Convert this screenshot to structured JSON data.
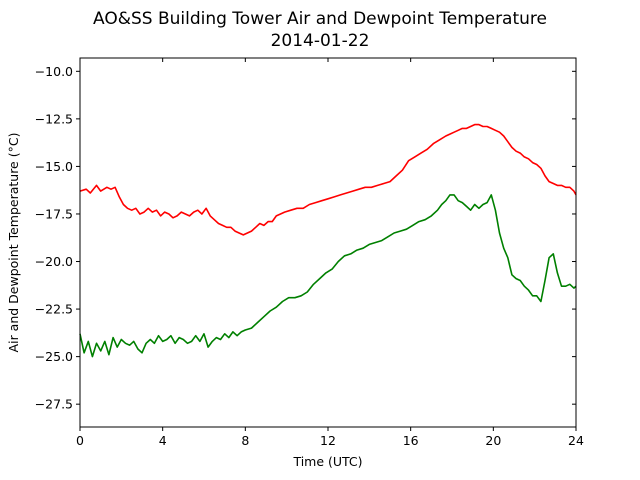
{
  "chart_data": {
    "type": "line",
    "title": "AO&SS Building Tower Air and Dewpoint Temperature",
    "subtitle": "2014-01-22",
    "xlabel": "Time (UTC)",
    "ylabel": "Air and Dewpoint Temperature (°C)",
    "xlim": [
      0,
      24
    ],
    "ylim": [
      -28.7,
      -9.3
    ],
    "xticks": [
      0,
      4,
      8,
      12,
      16,
      20,
      24
    ],
    "xtick_labels": [
      "0",
      "4",
      "8",
      "12",
      "16",
      "20",
      "24"
    ],
    "yticks": [
      -10.0,
      -12.5,
      -15.0,
      -17.5,
      -20.0,
      -22.5,
      -25.0,
      -27.5
    ],
    "ytick_labels": [
      "−10.0",
      "−12.5",
      "−15.0",
      "−17.5",
      "−20.0",
      "−22.5",
      "−25.0",
      "−27.5"
    ],
    "grid": false,
    "legend": "none",
    "series": [
      {
        "color": "#ff0000",
        "x": [
          0,
          0.3,
          0.5,
          0.8,
          1.0,
          1.3,
          1.5,
          1.7,
          1.9,
          2.1,
          2.3,
          2.5,
          2.7,
          2.9,
          3.1,
          3.3,
          3.5,
          3.7,
          3.9,
          4.1,
          4.3,
          4.5,
          4.7,
          4.9,
          5.1,
          5.3,
          5.5,
          5.7,
          5.9,
          6.1,
          6.3,
          6.5,
          6.7,
          6.9,
          7.1,
          7.3,
          7.5,
          7.7,
          7.9,
          8.1,
          8.3,
          8.5,
          8.7,
          8.9,
          9.1,
          9.3,
          9.5,
          9.7,
          9.9,
          10.2,
          10.5,
          10.8,
          11.1,
          11.4,
          11.7,
          12.0,
          12.3,
          12.6,
          12.9,
          13.2,
          13.5,
          13.8,
          14.1,
          14.4,
          14.7,
          15.0,
          15.3,
          15.6,
          15.9,
          16.2,
          16.5,
          16.8,
          17.1,
          17.4,
          17.7,
          17.9,
          18.1,
          18.3,
          18.5,
          18.7,
          18.9,
          19.1,
          19.3,
          19.5,
          19.7,
          19.9,
          20.1,
          20.3,
          20.5,
          20.7,
          20.9,
          21.1,
          21.3,
          21.5,
          21.7,
          21.9,
          22.1,
          22.3,
          22.5,
          22.7,
          22.9,
          23.1,
          23.3,
          23.5,
          23.7,
          23.9,
          24.0
        ],
        "y": [
          -16.3,
          -16.2,
          -16.4,
          -16.0,
          -16.3,
          -16.1,
          -16.2,
          -16.1,
          -16.6,
          -17.0,
          -17.2,
          -17.3,
          -17.2,
          -17.5,
          -17.4,
          -17.2,
          -17.4,
          -17.3,
          -17.6,
          -17.4,
          -17.5,
          -17.7,
          -17.6,
          -17.4,
          -17.5,
          -17.6,
          -17.4,
          -17.3,
          -17.5,
          -17.2,
          -17.6,
          -17.8,
          -18.0,
          -18.1,
          -18.2,
          -18.2,
          -18.4,
          -18.5,
          -18.6,
          -18.5,
          -18.4,
          -18.2,
          -18.0,
          -18.1,
          -17.9,
          -17.9,
          -17.6,
          -17.5,
          -17.4,
          -17.3,
          -17.2,
          -17.2,
          -17.0,
          -16.9,
          -16.8,
          -16.7,
          -16.6,
          -16.5,
          -16.4,
          -16.3,
          -16.2,
          -16.1,
          -16.1,
          -16.0,
          -15.9,
          -15.8,
          -15.5,
          -15.2,
          -14.7,
          -14.5,
          -14.3,
          -14.1,
          -13.8,
          -13.6,
          -13.4,
          -13.3,
          -13.2,
          -13.1,
          -13.0,
          -13.0,
          -12.9,
          -12.8,
          -12.8,
          -12.9,
          -12.9,
          -13.0,
          -13.1,
          -13.2,
          -13.4,
          -13.7,
          -14.0,
          -14.2,
          -14.3,
          -14.5,
          -14.6,
          -14.8,
          -14.9,
          -15.1,
          -15.5,
          -15.8,
          -15.9,
          -16.0,
          -16.0,
          -16.1,
          -16.1,
          -16.3,
          -16.5
        ]
      },
      {
        "color": "#008000",
        "x": [
          0,
          0.2,
          0.4,
          0.6,
          0.8,
          1.0,
          1.2,
          1.4,
          1.6,
          1.8,
          2.0,
          2.2,
          2.4,
          2.6,
          2.8,
          3.0,
          3.2,
          3.4,
          3.6,
          3.8,
          4.0,
          4.2,
          4.4,
          4.6,
          4.8,
          5.0,
          5.2,
          5.4,
          5.6,
          5.8,
          6.0,
          6.2,
          6.4,
          6.6,
          6.8,
          7.0,
          7.2,
          7.4,
          7.6,
          7.8,
          8.0,
          8.3,
          8.6,
          8.9,
          9.2,
          9.5,
          9.8,
          10.1,
          10.4,
          10.7,
          11.0,
          11.3,
          11.6,
          11.9,
          12.2,
          12.5,
          12.8,
          13.1,
          13.4,
          13.7,
          14.0,
          14.3,
          14.6,
          14.9,
          15.2,
          15.5,
          15.8,
          16.1,
          16.4,
          16.7,
          17.0,
          17.3,
          17.5,
          17.7,
          17.9,
          18.1,
          18.3,
          18.5,
          18.7,
          18.9,
          19.1,
          19.3,
          19.5,
          19.7,
          19.9,
          20.1,
          20.3,
          20.5,
          20.7,
          20.9,
          21.1,
          21.3,
          21.5,
          21.7,
          21.9,
          22.1,
          22.3,
          22.5,
          22.7,
          22.9,
          23.1,
          23.3,
          23.5,
          23.7,
          23.9,
          24.0
        ],
        "y": [
          -23.8,
          -24.8,
          -24.2,
          -25.0,
          -24.3,
          -24.7,
          -24.2,
          -24.9,
          -24.0,
          -24.5,
          -24.1,
          -24.3,
          -24.4,
          -24.2,
          -24.6,
          -24.8,
          -24.3,
          -24.1,
          -24.3,
          -23.9,
          -24.2,
          -24.1,
          -23.9,
          -24.3,
          -24.0,
          -24.1,
          -24.3,
          -24.2,
          -23.9,
          -24.2,
          -23.8,
          -24.5,
          -24.2,
          -24.0,
          -24.1,
          -23.8,
          -24.0,
          -23.7,
          -23.9,
          -23.7,
          -23.6,
          -23.5,
          -23.2,
          -22.9,
          -22.6,
          -22.4,
          -22.1,
          -21.9,
          -21.9,
          -21.8,
          -21.6,
          -21.2,
          -20.9,
          -20.6,
          -20.4,
          -20.0,
          -19.7,
          -19.6,
          -19.4,
          -19.3,
          -19.1,
          -19.0,
          -18.9,
          -18.7,
          -18.5,
          -18.4,
          -18.3,
          -18.1,
          -17.9,
          -17.8,
          -17.6,
          -17.3,
          -17.0,
          -16.8,
          -16.5,
          -16.5,
          -16.8,
          -16.9,
          -17.1,
          -17.3,
          -17.0,
          -17.2,
          -17.0,
          -16.9,
          -16.5,
          -17.3,
          -18.5,
          -19.3,
          -19.8,
          -20.7,
          -20.9,
          -21.0,
          -21.3,
          -21.5,
          -21.8,
          -21.8,
          -22.1,
          -21.0,
          -19.8,
          -19.6,
          -20.6,
          -21.3,
          -21.3,
          -21.2,
          -21.4,
          -21.3
        ]
      }
    ]
  }
}
